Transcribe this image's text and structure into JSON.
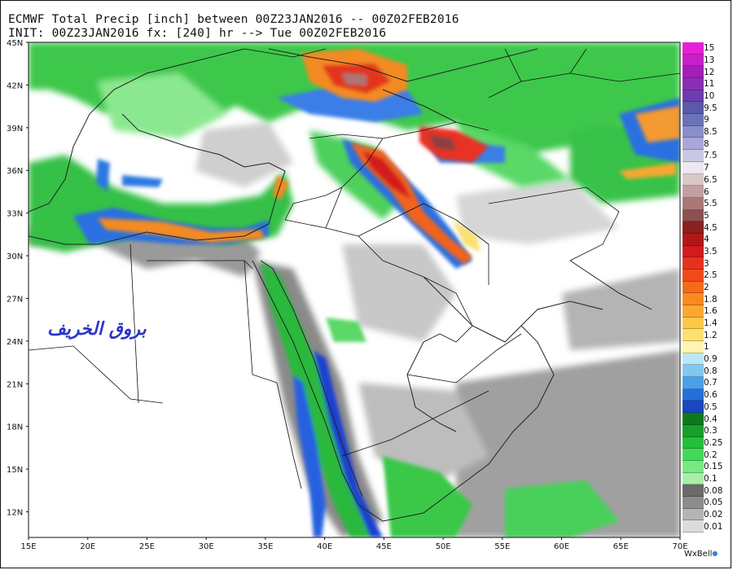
{
  "header": {
    "line1": "ECMWF Total Precip [inch] between 00Z23JAN2016 -- 00Z02FEB2016",
    "line2": "INIT: 00Z23JAN2016 fx: [240] hr --> Tue 00Z02FEB2016"
  },
  "map": {
    "lat_labels": [
      "45N",
      "42N",
      "39N",
      "36N",
      "33N",
      "30N",
      "27N",
      "24N",
      "21N",
      "18N",
      "15N",
      "12N"
    ],
    "lon_labels": [
      "15E",
      "20E",
      "25E",
      "30E",
      "35E",
      "40E",
      "45E",
      "50E",
      "55E",
      "60E",
      "65E",
      "70E"
    ]
  },
  "legend": {
    "entries": [
      {
        "label": "15",
        "color": "#e620d6"
      },
      {
        "label": "13",
        "color": "#c820c8"
      },
      {
        "label": "12",
        "color": "#a31fb8"
      },
      {
        "label": "11",
        "color": "#8a2fb4"
      },
      {
        "label": "10",
        "color": "#6e3cae"
      },
      {
        "label": "9.5",
        "color": "#5a5aa8"
      },
      {
        "label": "9",
        "color": "#6b73b8"
      },
      {
        "label": "8.5",
        "color": "#8a8fc8"
      },
      {
        "label": "8",
        "color": "#a8a8d8"
      },
      {
        "label": "7.5",
        "color": "#c8c8e4"
      },
      {
        "label": "7",
        "color": "#ece8f0"
      },
      {
        "label": "6.5",
        "color": "#d8c8c8"
      },
      {
        "label": "6",
        "color": "#c0a0a0"
      },
      {
        "label": "5.5",
        "color": "#a87878"
      },
      {
        "label": "5",
        "color": "#8c5050"
      },
      {
        "label": "4.5",
        "color": "#8a2020"
      },
      {
        "label": "4",
        "color": "#b01818"
      },
      {
        "label": "3.5",
        "color": "#d01c1c"
      },
      {
        "label": "3",
        "color": "#e83020"
      },
      {
        "label": "2.5",
        "color": "#f04a1c"
      },
      {
        "label": "2",
        "color": "#f46a1c"
      },
      {
        "label": "1.8",
        "color": "#f88a20"
      },
      {
        "label": "1.6",
        "color": "#faa830"
      },
      {
        "label": "1.4",
        "color": "#fcc848"
      },
      {
        "label": "1.2",
        "color": "#fde070"
      },
      {
        "label": "1",
        "color": "#fff4b0"
      },
      {
        "label": "0.9",
        "color": "#b8e8f8"
      },
      {
        "label": "0.8",
        "color": "#80c8f0"
      },
      {
        "label": "0.7",
        "color": "#4aa0e8"
      },
      {
        "label": "0.6",
        "color": "#2470d8"
      },
      {
        "label": "0.5",
        "color": "#1a46c0"
      },
      {
        "label": "0.4",
        "color": "#0c7a1c"
      },
      {
        "label": "0.3",
        "color": "#16a02a"
      },
      {
        "label": "0.25",
        "color": "#22c03a"
      },
      {
        "label": "0.2",
        "color": "#44d85a"
      },
      {
        "label": "0.15",
        "color": "#78e882"
      },
      {
        "label": "0.1",
        "color": "#a8f0a8"
      },
      {
        "label": "0.08",
        "color": "#6a6a6a"
      },
      {
        "label": "0.05",
        "color": "#8c8c8c"
      },
      {
        "label": "0.02",
        "color": "#b4b4b4"
      },
      {
        "label": "0.01",
        "color": "#dcdcdc"
      }
    ]
  },
  "credit": "WxBell",
  "watermark": "بروق الخريف",
  "colors": {
    "land_dry": "#ffffff",
    "border": "#111111"
  }
}
